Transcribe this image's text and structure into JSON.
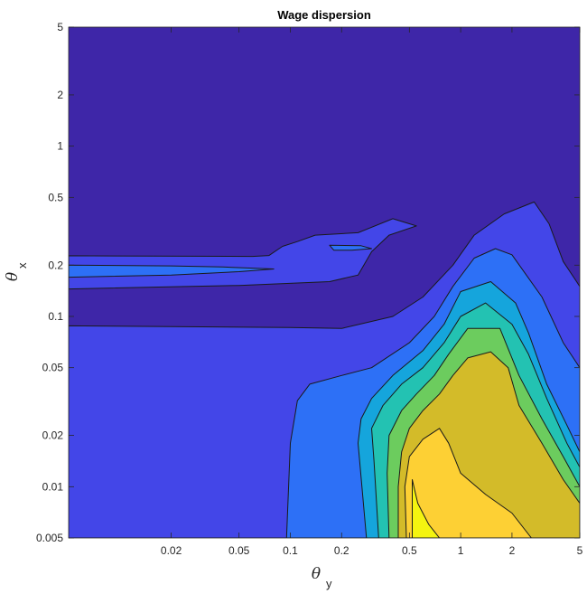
{
  "chart_data": {
    "type": "contour",
    "title": "Wage dispersion",
    "xlabel": {
      "symbol": "θ",
      "subscript": "y"
    },
    "ylabel": {
      "symbol": "θ",
      "subscript": "x"
    },
    "xscale": "log",
    "yscale": "log",
    "xlim": [
      0.005,
      5
    ],
    "ylim": [
      0.005,
      5
    ],
    "xticks": [
      {
        "value": 0.02,
        "label": "0.02"
      },
      {
        "value": 0.05,
        "label": "0.05"
      },
      {
        "value": 0.1,
        "label": "0.1"
      },
      {
        "value": 0.2,
        "label": "0.2"
      },
      {
        "value": 0.5,
        "label": "0.5"
      },
      {
        "value": 1,
        "label": "1"
      },
      {
        "value": 2,
        "label": "2"
      },
      {
        "value": 5,
        "label": "5"
      }
    ],
    "yticks": [
      {
        "value": 0.005,
        "label": "0.005"
      },
      {
        "value": 0.01,
        "label": "0.01"
      },
      {
        "value": 0.02,
        "label": "0.02"
      },
      {
        "value": 0.05,
        "label": "0.05"
      },
      {
        "value": 0.1,
        "label": "0.1"
      },
      {
        "value": 0.2,
        "label": "0.2"
      },
      {
        "value": 0.5,
        "label": "0.5"
      },
      {
        "value": 1,
        "label": "1"
      },
      {
        "value": 2,
        "label": "2"
      },
      {
        "value": 5,
        "label": "5"
      }
    ],
    "colormap": "parula",
    "levels": [
      {
        "color": "#3e26a8",
        "regions": [
          [
            [
              0.005,
              5
            ],
            [
              5,
              5
            ],
            [
              5,
              0.005
            ],
            [
              0.005,
              0.005
            ]
          ]
        ]
      },
      {
        "color": "#4346e8",
        "regions": [
          [
            [
              0.005,
              0.227
            ],
            [
              0.06,
              0.225
            ],
            [
              0.075,
              0.228
            ],
            [
              0.09,
              0.258
            ],
            [
              0.11,
              0.275
            ],
            [
              0.14,
              0.3
            ],
            [
              0.25,
              0.31
            ],
            [
              0.4,
              0.375
            ],
            [
              0.55,
              0.34
            ],
            [
              0.38,
              0.3
            ],
            [
              0.3,
              0.24
            ],
            [
              0.25,
              0.175
            ],
            [
              0.17,
              0.16
            ],
            [
              0.05,
              0.152
            ],
            [
              0.005,
              0.145
            ]
          ],
          [
            [
              0.005,
              0.088
            ],
            [
              0.1,
              0.086
            ],
            [
              0.2,
              0.085
            ],
            [
              0.4,
              0.1
            ],
            [
              0.6,
              0.13
            ],
            [
              0.9,
              0.2
            ],
            [
              1.2,
              0.3
            ],
            [
              1.8,
              0.4
            ],
            [
              2.7,
              0.47
            ],
            [
              3.3,
              0.35
            ],
            [
              4,
              0.21
            ],
            [
              5,
              0.15
            ],
            [
              5,
              0.005
            ],
            [
              0.005,
              0.005
            ]
          ]
        ]
      },
      {
        "color": "#2d70f6",
        "regions": [
          [
            [
              0.005,
              0.2
            ],
            [
              0.02,
              0.198
            ],
            [
              0.04,
              0.195
            ],
            [
              0.08,
              0.19
            ],
            [
              0.05,
              0.183
            ],
            [
              0.02,
              0.175
            ],
            [
              0.005,
              0.17
            ]
          ],
          [
            [
              0.17,
              0.262
            ],
            [
              0.26,
              0.26
            ],
            [
              0.3,
              0.25
            ],
            [
              0.23,
              0.245
            ],
            [
              0.18,
              0.245
            ]
          ],
          [
            [
              0.095,
              0.005
            ],
            [
              0.1,
              0.018
            ],
            [
              0.11,
              0.032
            ],
            [
              0.13,
              0.04
            ],
            [
              0.2,
              0.045
            ],
            [
              0.3,
              0.05
            ],
            [
              0.5,
              0.07
            ],
            [
              0.7,
              0.1
            ],
            [
              0.9,
              0.15
            ],
            [
              1.2,
              0.22
            ],
            [
              1.6,
              0.25
            ],
            [
              2.0,
              0.23
            ],
            [
              3.0,
              0.13
            ],
            [
              4.0,
              0.07
            ],
            [
              5,
              0.05
            ],
            [
              5,
              0.005
            ]
          ]
        ]
      },
      {
        "color": "#15a5dc",
        "regions": [
          [
            [
              0.28,
              0.005
            ],
            [
              0.25,
              0.018
            ],
            [
              0.26,
              0.025
            ],
            [
              0.3,
              0.033
            ],
            [
              0.4,
              0.045
            ],
            [
              0.6,
              0.063
            ],
            [
              0.8,
              0.09
            ],
            [
              1.0,
              0.14
            ],
            [
              1.5,
              0.16
            ],
            [
              2.1,
              0.12
            ],
            [
              2.5,
              0.08
            ],
            [
              3.2,
              0.04
            ],
            [
              4.2,
              0.023
            ],
            [
              5,
              0.016
            ],
            [
              5,
              0.005
            ]
          ]
        ]
      },
      {
        "color": "#23c2b2",
        "regions": [
          [
            [
              0.33,
              0.005
            ],
            [
              0.31,
              0.014
            ],
            [
              0.3,
              0.022
            ],
            [
              0.35,
              0.03
            ],
            [
              0.45,
              0.04
            ],
            [
              0.6,
              0.05
            ],
            [
              0.8,
              0.07
            ],
            [
              1.0,
              0.1
            ],
            [
              1.4,
              0.12
            ],
            [
              2.0,
              0.09
            ],
            [
              2.5,
              0.06
            ],
            [
              3.2,
              0.033
            ],
            [
              4.2,
              0.018
            ],
            [
              5,
              0.013
            ],
            [
              5,
              0.005
            ]
          ]
        ]
      },
      {
        "color": "#6ccc5e",
        "regions": [
          [
            [
              0.38,
              0.005
            ],
            [
              0.37,
              0.012
            ],
            [
              0.38,
              0.02
            ],
            [
              0.45,
              0.028
            ],
            [
              0.55,
              0.035
            ],
            [
              0.7,
              0.045
            ],
            [
              0.85,
              0.06
            ],
            [
              1.1,
              0.085
            ],
            [
              1.7,
              0.085
            ],
            [
              2.2,
              0.045
            ],
            [
              3.0,
              0.025
            ],
            [
              4.0,
              0.015
            ],
            [
              5,
              0.01
            ],
            [
              5,
              0.005
            ]
          ]
        ]
      },
      {
        "color": "#d3bb29",
        "regions": [
          [
            [
              0.43,
              0.005
            ],
            [
              0.43,
              0.01
            ],
            [
              0.45,
              0.016
            ],
            [
              0.5,
              0.022
            ],
            [
              0.6,
              0.028
            ],
            [
              0.75,
              0.035
            ],
            [
              0.9,
              0.045
            ],
            [
              1.1,
              0.057
            ],
            [
              1.5,
              0.062
            ],
            [
              1.9,
              0.05
            ],
            [
              2.2,
              0.03
            ],
            [
              3.0,
              0.018
            ],
            [
              4.0,
              0.011
            ],
            [
              5,
              0.008
            ],
            [
              5,
              0.005
            ]
          ]
        ]
      },
      {
        "color": "#fdd034",
        "regions": [
          [
            [
              0.48,
              0.005
            ],
            [
              0.47,
              0.01
            ],
            [
              0.5,
              0.015
            ],
            [
              0.6,
              0.019
            ],
            [
              0.75,
              0.022
            ],
            [
              0.85,
              0.018
            ],
            [
              1.0,
              0.012
            ],
            [
              1.4,
              0.009
            ],
            [
              2.0,
              0.007
            ],
            [
              2.6,
              0.005
            ]
          ]
        ]
      },
      {
        "color": "#f4f410",
        "regions": [
          [
            [
              0.52,
              0.005
            ],
            [
              0.52,
              0.011
            ],
            [
              0.56,
              0.008
            ],
            [
              0.65,
              0.006
            ],
            [
              0.75,
              0.005
            ]
          ]
        ]
      }
    ]
  }
}
